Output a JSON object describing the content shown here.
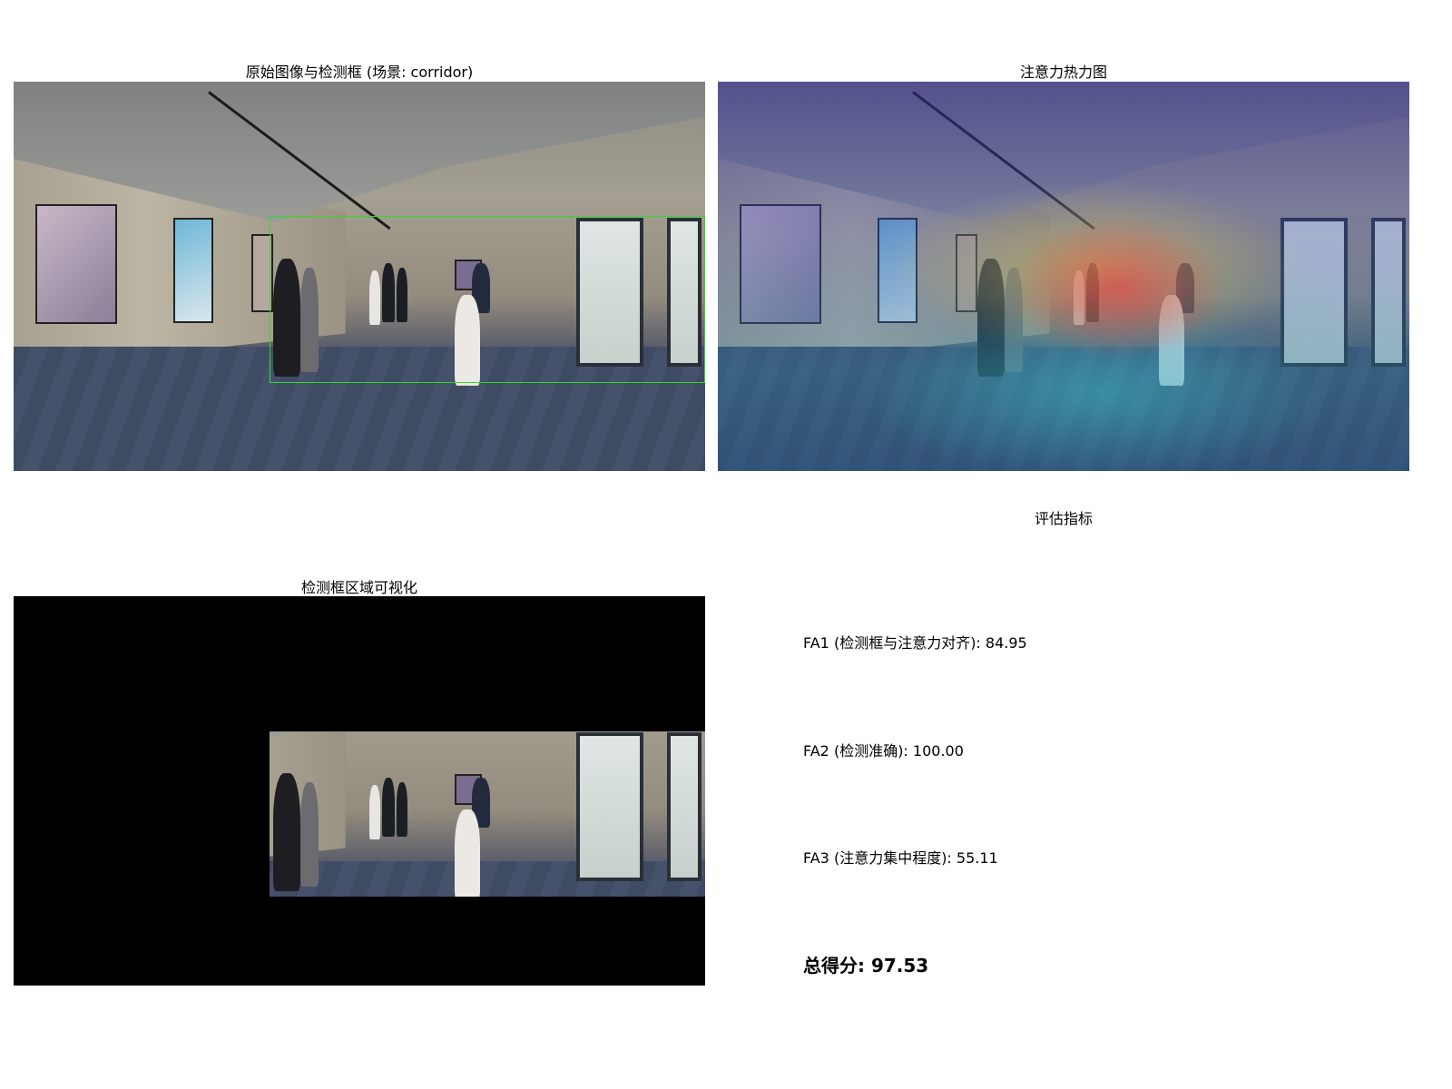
{
  "panels": {
    "original": {
      "title": "原始图像与检测框 (场景: corridor)"
    },
    "heatmap": {
      "title": "注意力热力图"
    },
    "cropped": {
      "title": "检测框区域可视化"
    },
    "metrics": {
      "title": "评估指标"
    }
  },
  "metrics": {
    "fa1": "FA1 (检测框与注意力对齐): 84.95",
    "fa2": "FA2 (检测准确): 100.00",
    "fa3": "FA3 (注意力集中程度): 55.11",
    "total": "总得分: 97.53"
  },
  "colors": {
    "bbox": "#2bdc2b",
    "background": "#ffffff"
  }
}
